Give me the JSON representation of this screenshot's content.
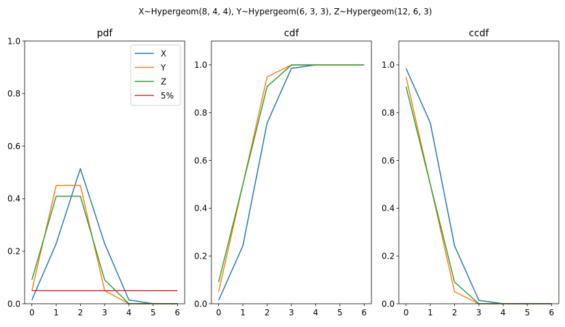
{
  "figure": {
    "suptitle": "X~Hypergeom(8, 4, 4), Y~Hypergeom(6, 3, 3), Z~Hypergeom(12, 6, 3)"
  },
  "chart_data": [
    {
      "type": "line",
      "title": "pdf",
      "xlabel": "",
      "ylabel": "",
      "x": [
        0,
        1,
        2,
        3,
        4,
        5,
        6
      ],
      "xlim": [
        -0.3,
        6.3
      ],
      "ylim": [
        0,
        1.0
      ],
      "xticks": [
        0,
        1,
        2,
        3,
        4,
        5,
        6
      ],
      "yticks": [
        0.0,
        0.2,
        0.4,
        0.6,
        0.8,
        1.0
      ],
      "ytick_labels": [
        "0.0",
        "0.2",
        "0.4",
        "0.6",
        "0.8",
        "1.0"
      ],
      "grid": false,
      "legend": "top-right",
      "series": [
        {
          "name": "X",
          "color": "#1f77b4",
          "values": [
            0.0143,
            0.2286,
            0.5143,
            0.2286,
            0.0143,
            0,
            0
          ]
        },
        {
          "name": "Y",
          "color": "#ff7f0e",
          "values": [
            0.05,
            0.45,
            0.45,
            0.05,
            0,
            0,
            0
          ]
        },
        {
          "name": "Z",
          "color": "#2ca02c",
          "values": [
            0.0909,
            0.4091,
            0.4091,
            0.0909,
            0,
            0,
            0
          ]
        },
        {
          "name": "5%",
          "color": "#d62728",
          "values": [
            0.05,
            0.05,
            0.05,
            0.05,
            0.05,
            0.05,
            0.05
          ]
        }
      ]
    },
    {
      "type": "line",
      "title": "cdf",
      "xlabel": "",
      "ylabel": "",
      "x": [
        0,
        1,
        2,
        3,
        4,
        5,
        6
      ],
      "xlim": [
        -0.3,
        6.3
      ],
      "ylim": [
        0,
        1.1
      ],
      "xticks": [
        0,
        1,
        2,
        3,
        4,
        5,
        6
      ],
      "yticks": [
        0.0,
        0.2,
        0.4,
        0.6,
        0.8,
        1.0
      ],
      "ytick_labels": [
        "0.0",
        "0.2",
        "0.4",
        "0.6",
        "0.8",
        "1.0"
      ],
      "grid": false,
      "series": [
        {
          "color": "#1f77b4",
          "values": [
            0.0143,
            0.2429,
            0.7571,
            0.9857,
            1.0,
            1.0,
            1.0
          ]
        },
        {
          "color": "#ff7f0e",
          "values": [
            0.05,
            0.5,
            0.95,
            1.0,
            1.0,
            1.0,
            1.0
          ]
        },
        {
          "color": "#2ca02c",
          "values": [
            0.0909,
            0.5,
            0.9091,
            1.0,
            1.0,
            1.0,
            1.0
          ]
        }
      ]
    },
    {
      "type": "line",
      "title": "ccdf",
      "xlabel": "",
      "ylabel": "",
      "x": [
        0,
        1,
        2,
        3,
        4,
        5,
        6
      ],
      "xlim": [
        -0.3,
        6.3
      ],
      "ylim": [
        0,
        1.1
      ],
      "xticks": [
        0,
        1,
        2,
        3,
        4,
        5,
        6
      ],
      "yticks": [
        0.0,
        0.2,
        0.4,
        0.6,
        0.8,
        1.0
      ],
      "ytick_labels": [
        "0.0",
        "0.2",
        "0.4",
        "0.6",
        "0.8",
        "1.0"
      ],
      "grid": false,
      "series": [
        {
          "color": "#1f77b4",
          "values": [
            0.9857,
            0.7571,
            0.2429,
            0.0143,
            0,
            0,
            0
          ]
        },
        {
          "color": "#ff7f0e",
          "values": [
            0.95,
            0.5,
            0.05,
            0,
            0,
            0,
            0
          ]
        },
        {
          "color": "#2ca02c",
          "values": [
            0.9091,
            0.5,
            0.0909,
            0,
            0,
            0,
            0
          ]
        }
      ]
    }
  ]
}
